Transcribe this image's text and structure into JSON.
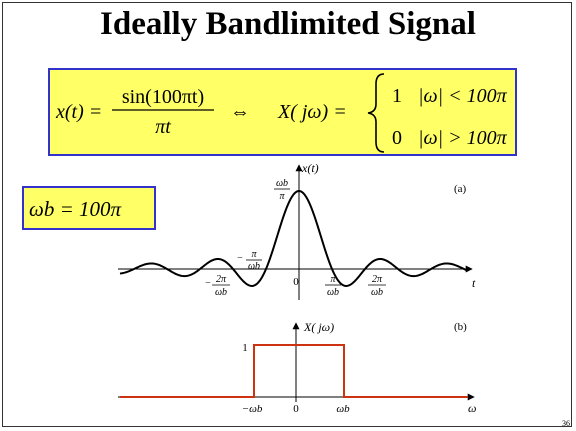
{
  "slide": {
    "title": "Ideally Bandlimited Signal",
    "page_number": "36"
  },
  "equation": {
    "lhs": "x(t) =",
    "numerator": "sin(100πt)",
    "denominator": "πt",
    "equiv_symbol": "⇔",
    "rhs_lhs": "X( jω) =",
    "case1_value": "1",
    "case1_condition": "|ω| < 100π",
    "case2_value": "0",
    "case2_condition": "|ω| > 100π"
  },
  "omega_b_box": {
    "text": "ωb = 100π"
  },
  "plot_a": {
    "label": "(a)",
    "y_axis_label": "x(t)",
    "x_axis_label": "t",
    "peak_label": {
      "num": "ωb",
      "den": "π"
    },
    "neg_label": {
      "num": "π",
      "den": "ωb",
      "sign": "−"
    },
    "tick_labels": {
      "neg_2pi": {
        "num": "2π",
        "den": "ωb",
        "sign": "−"
      },
      "zero": "0",
      "pos_pi": {
        "num": "π",
        "den": "ωb"
      },
      "pos_2pi": {
        "num": "2π",
        "den": "ωb"
      }
    }
  },
  "plot_b": {
    "label": "(b)",
    "y_axis_label": "X( jω)",
    "x_axis_label": "ω",
    "level_label": "1",
    "tick_labels": {
      "neg": "−ωb",
      "zero": "0",
      "pos": "ωb"
    }
  },
  "colors": {
    "box_fill": "#ffff66",
    "box_border": "#3333cc",
    "rect_line": "#cc3311"
  }
}
